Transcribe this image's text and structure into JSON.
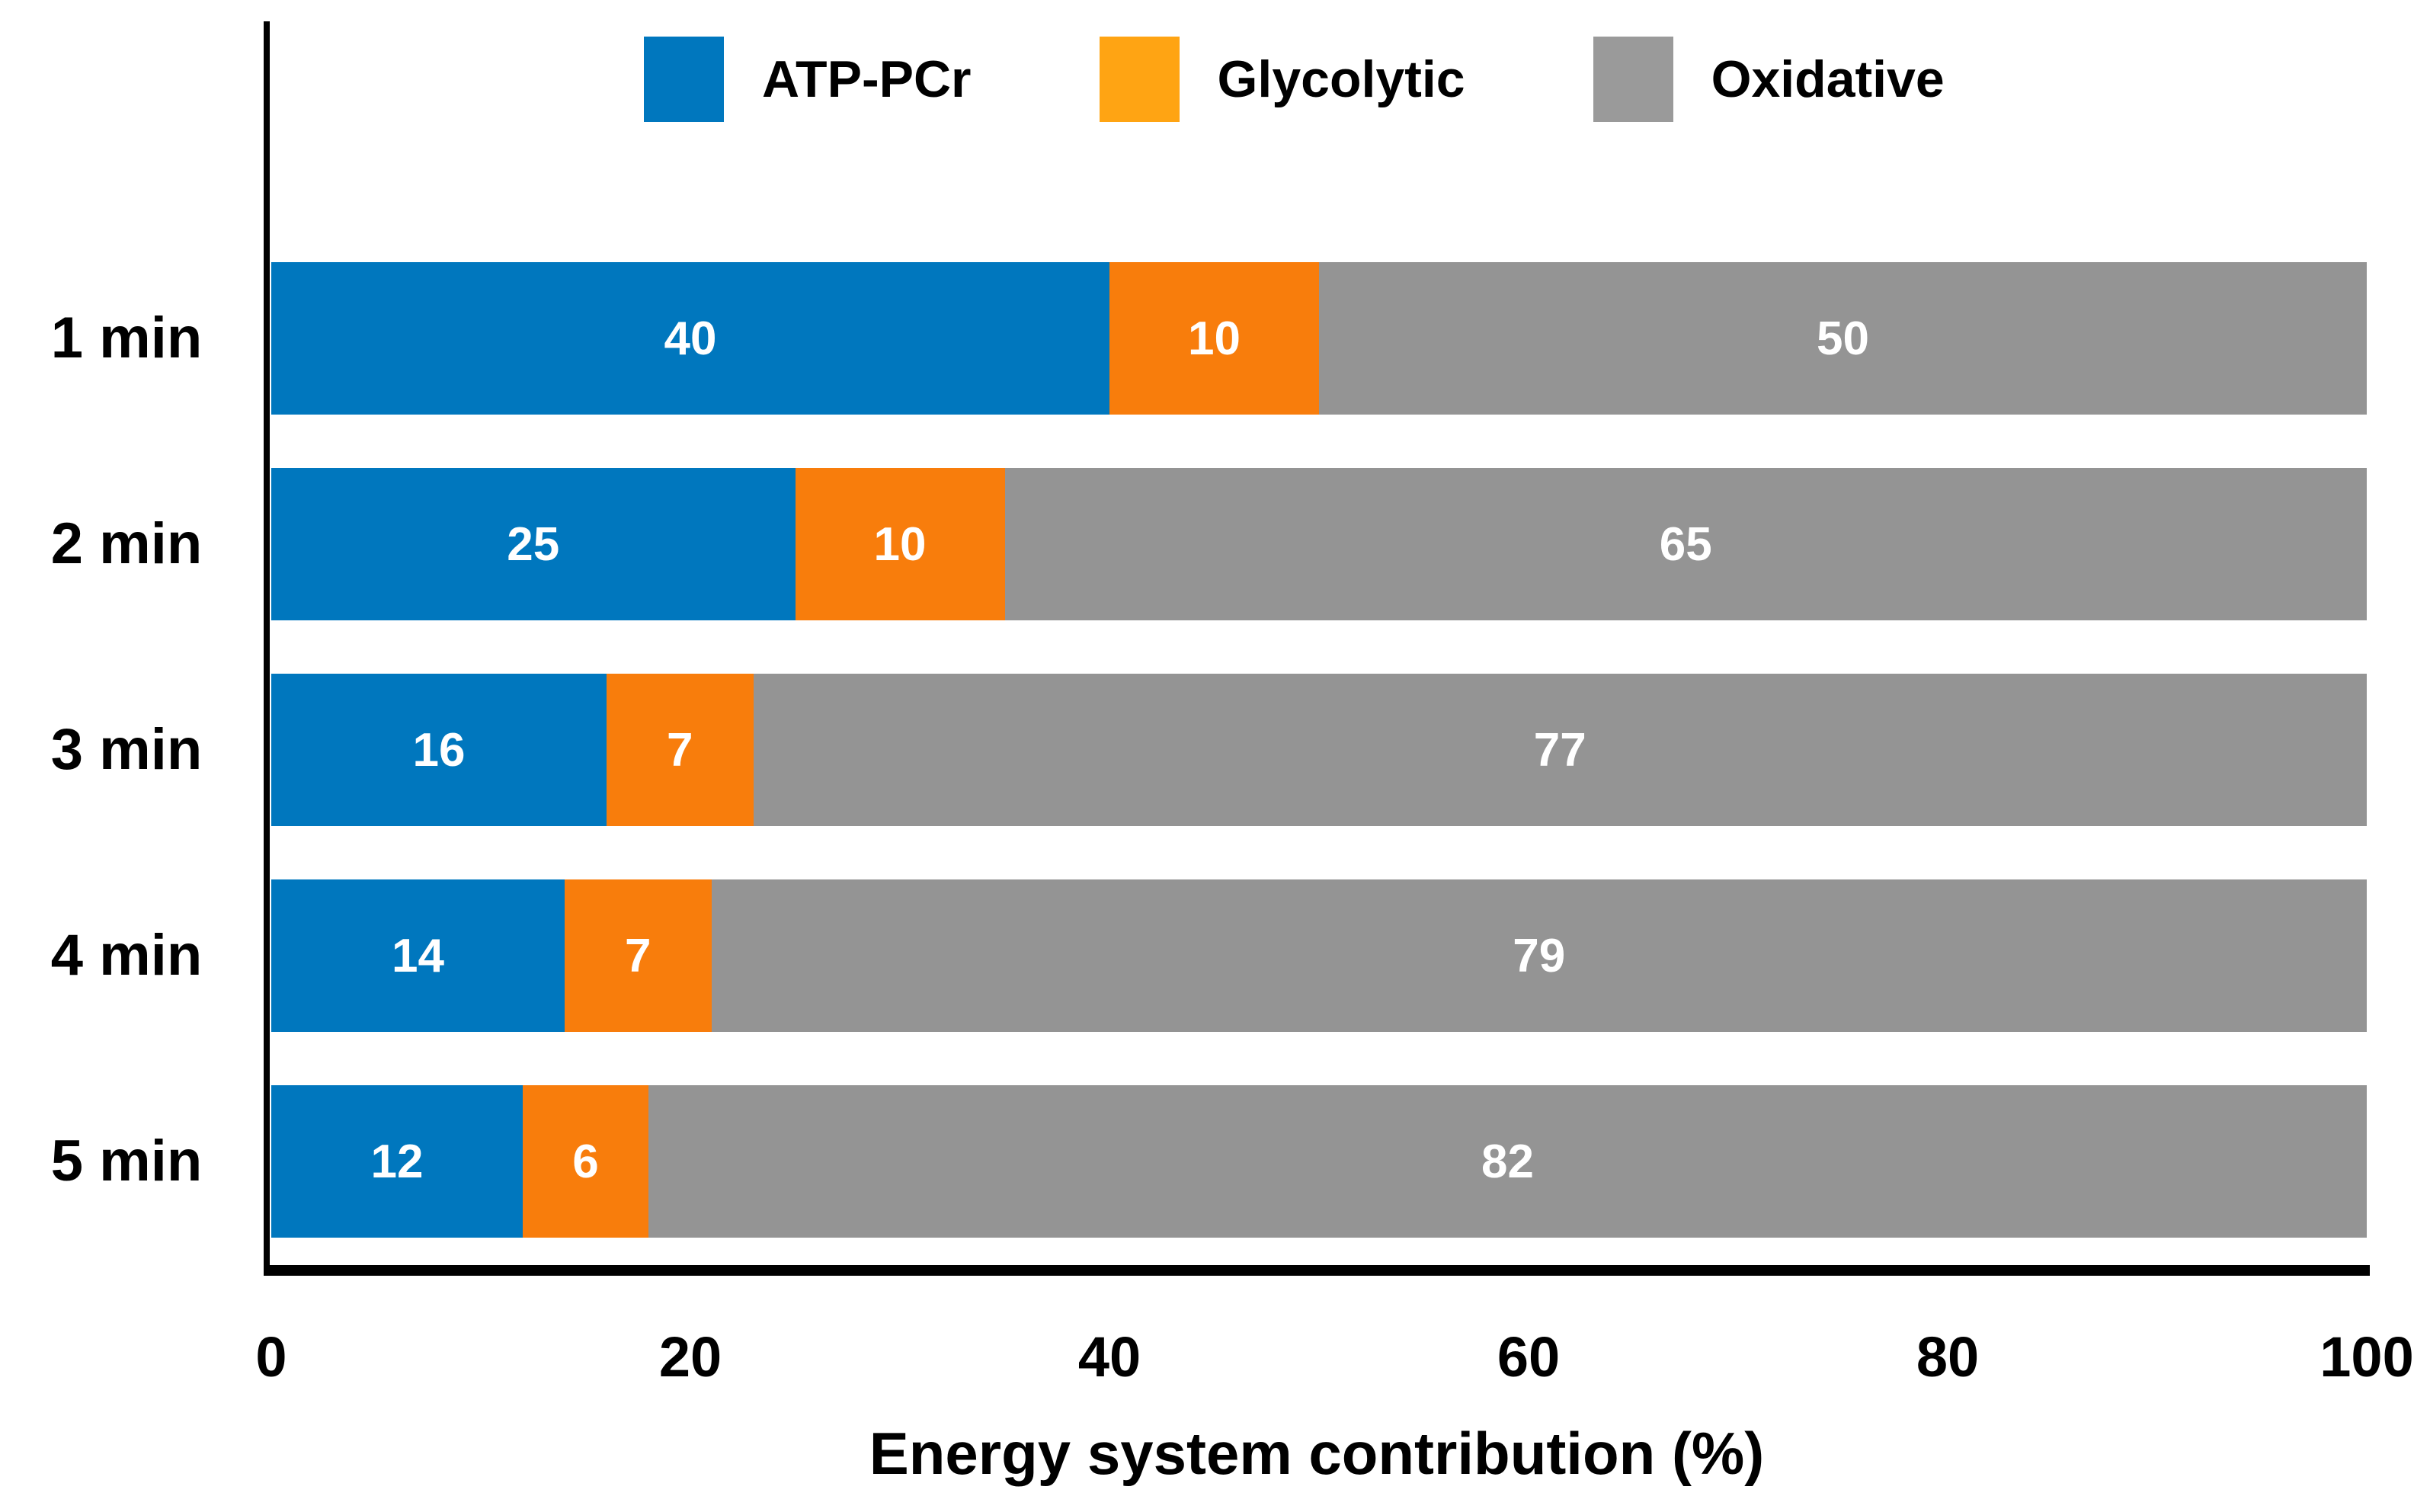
{
  "chart_data": {
    "type": "bar",
    "orientation": "horizontal",
    "stacked": true,
    "categories": [
      "1 min",
      "2 min",
      "3 min",
      "4 min",
      "5 min"
    ],
    "series": [
      {
        "name": "ATP-PCr",
        "color": "#0077BE",
        "legend_color": "#0077BE",
        "values": [
          40,
          25,
          16,
          14,
          12
        ]
      },
      {
        "name": "Glycolytic",
        "color": "#F87D0C",
        "legend_color": "#FFA413",
        "values": [
          10,
          10,
          7,
          7,
          6
        ]
      },
      {
        "name": "Oxidative",
        "color": "#949494",
        "legend_color": "#9A9A9A",
        "values": [
          50,
          65,
          77,
          79,
          82
        ]
      }
    ],
    "xlabel": "Energy system contribution (%)",
    "xticks": [
      0,
      20,
      40,
      60,
      80,
      100
    ],
    "xlim": [
      0,
      100
    ],
    "legend_position": "top",
    "value_labels_shown": true,
    "value_label_color": "#FFFFFF",
    "axis_color": "#000000",
    "grid": false
  }
}
